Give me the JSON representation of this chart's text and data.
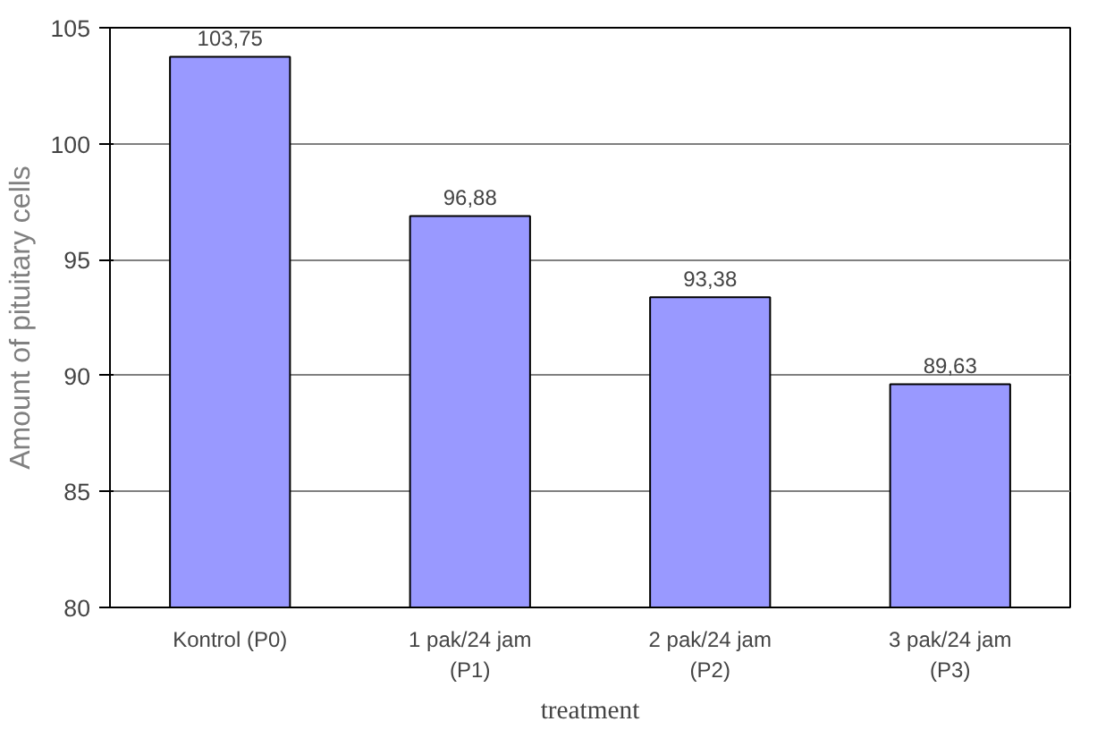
{
  "chart_data": {
    "type": "bar",
    "xlabel": "treatment",
    "ylabel": "Amount of pituitary cells",
    "categories": [
      "Kontrol (P0)",
      "1 pak/24 jam\n(P1)",
      "2 pak/24 jam\n(P2)",
      "3 pak/24 jam\n(P3)"
    ],
    "values": [
      103.75,
      96.88,
      93.38,
      89.63
    ],
    "value_labels": [
      "103,75",
      "96,88",
      "93,38",
      "89,63"
    ],
    "color": "#9999ff",
    "ylim": [
      80,
      105
    ],
    "yticks": [
      80,
      85,
      90,
      95,
      100,
      105
    ],
    "grid": "y"
  }
}
